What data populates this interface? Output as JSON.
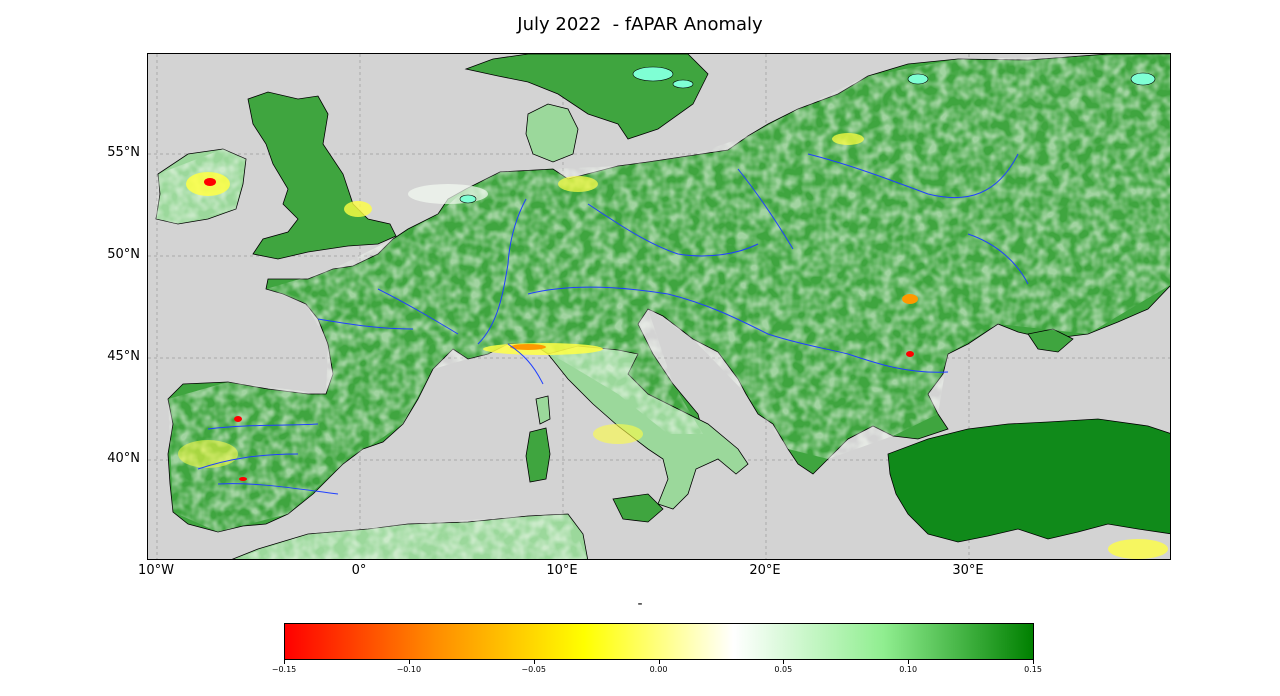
{
  "title": "July 2022  - fAPAR Anomaly",
  "map": {
    "lat_labels": [
      "55°N",
      "50°N",
      "45°N",
      "40°N"
    ],
    "lon_labels": [
      "10°W",
      "0°",
      "10°E",
      "20°E",
      "30°E"
    ],
    "colors": {
      "sea": "#d3d3d3",
      "strong_positive": "#108a1a",
      "positive": "#3fa53f",
      "weak_positive": "#9bd89b",
      "neutral": "#f4fbf2",
      "weak_negative": "#ffff44",
      "negative": "#ff9900",
      "strong_negative": "#ff0000",
      "lake": "#7fffd4",
      "river": "#2040ff",
      "coast": "#000000"
    }
  },
  "colorbar": {
    "label": "-",
    "ticks": [
      "−0.15",
      "−0.10",
      "−0.05",
      "0.00",
      "0.05",
      "0.10",
      "0.15"
    ],
    "colors": [
      "#ff0000",
      "#ff8c00",
      "#ffff00",
      "#ffffff",
      "#90ee90",
      "#008000"
    ]
  }
}
